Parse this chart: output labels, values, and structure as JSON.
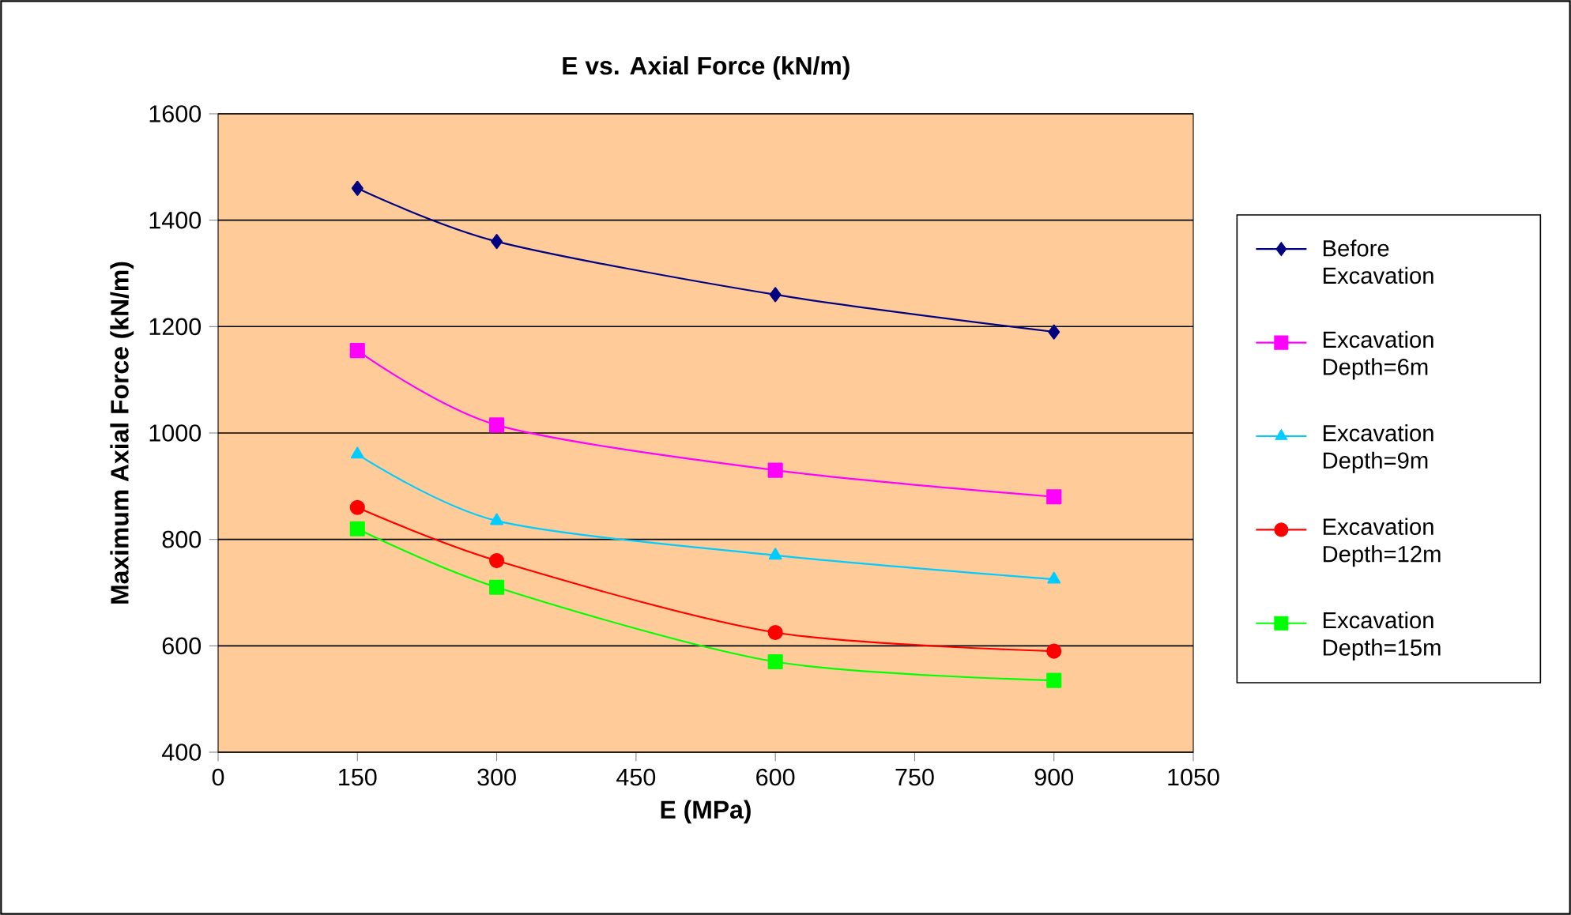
{
  "chart_data": {
    "type": "line",
    "title": "E vs. Axial Force (kN/m)",
    "xlabel": "E (MPa)",
    "ylabel": "Maximum Axial Force (kN/m)",
    "x": [
      150,
      300,
      600,
      900
    ],
    "series": [
      {
        "name": "Before Excavation",
        "color": "#000080",
        "marker": "diamond",
        "values": [
          1460,
          1360,
          1260,
          1190
        ]
      },
      {
        "name": "Excavation Depth=6m",
        "color": "#ff00ff",
        "marker": "square",
        "values": [
          1155,
          1015,
          930,
          880
        ]
      },
      {
        "name": "Excavation Depth=9m",
        "color": "#00ccff",
        "marker": "triangle",
        "values": [
          960,
          835,
          770,
          725
        ]
      },
      {
        "name": "Excavation Depth=12m",
        "color": "#ff0000",
        "marker": "circle",
        "values": [
          860,
          760,
          625,
          590
        ]
      },
      {
        "name": "Excavation Depth=15m",
        "color": "#00ff00",
        "marker": "square",
        "values": [
          820,
          710,
          570,
          535
        ]
      }
    ],
    "xlim": [
      0,
      1050
    ],
    "xticks": [
      0,
      150,
      300,
      450,
      600,
      750,
      900,
      1050
    ],
    "ylim": [
      400,
      1600
    ],
    "yticks": [
      400,
      600,
      800,
      1000,
      1200,
      1400,
      1600
    ],
    "grid": "y",
    "legend": "right",
    "line_style": "solid"
  }
}
